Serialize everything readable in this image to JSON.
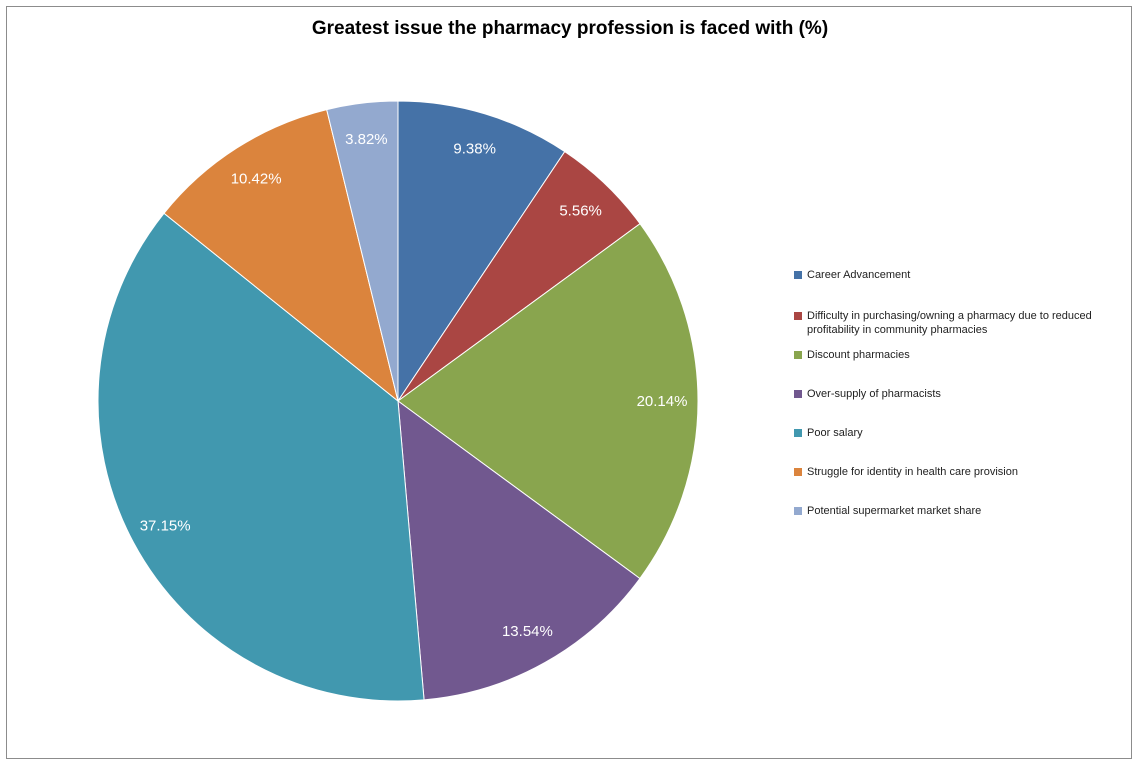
{
  "chart_data": {
    "type": "pie",
    "title": "Greatest issue the pharmacy profession is faced with (%)",
    "legend_position": "right",
    "start_angle": "top, clockwise",
    "slices": [
      {
        "label": "Career Advancement",
        "value": 9.38,
        "display": "9.38%",
        "color": "#4572a7"
      },
      {
        "label": "Difficulty in purchasing/owning a pharmacy due to reduced profitability in community  pharmacies",
        "value": 5.56,
        "display": "5.56%",
        "color": "#aa4643"
      },
      {
        "label": "Discount pharmacies",
        "value": 20.14,
        "display": "20.14%",
        "color": "#89a54e"
      },
      {
        "label": "Over-supply of pharmacists",
        "value": 13.54,
        "display": "13.54%",
        "color": "#71588f"
      },
      {
        "label": "Poor salary",
        "value": 37.15,
        "display": "37.15%",
        "color": "#4198af"
      },
      {
        "label": "Struggle for identity in health care provision",
        "value": 10.42,
        "display": "10.42%",
        "color": "#db843d"
      },
      {
        "label": "Potential supermarket market share",
        "value": 3.82,
        "display": "3.82%",
        "color": "#93a9cf"
      }
    ]
  }
}
